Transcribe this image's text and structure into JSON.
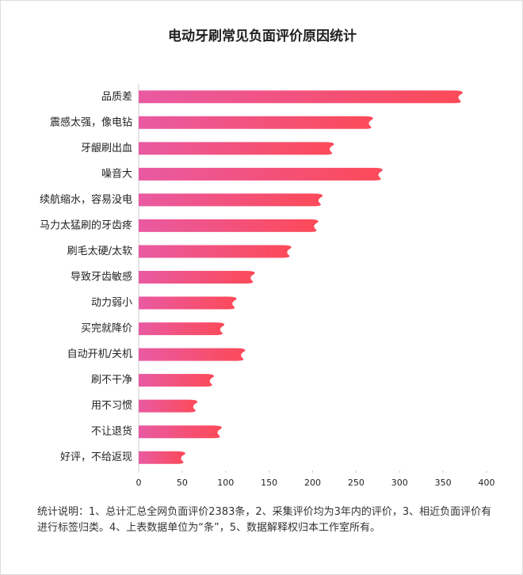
{
  "chart_data": {
    "type": "barh",
    "title": "电动牙刷常见负面评价原因统计",
    "categories": [
      "品质差",
      "震感太强，像电钻",
      "牙龈刷出血",
      "噪音大",
      "续航缩水，容易没电",
      "马力太猛刷的牙齿疼",
      "刷毛太硬/太软",
      "导致牙齿敏感",
      "动力弱小",
      "买完就降价",
      "自动开机/关机",
      "刷不干净",
      "用不习惯",
      "不让退货",
      "好评，不给返现"
    ],
    "values": [
      370,
      267,
      222,
      278,
      209,
      204,
      173,
      131,
      110,
      96,
      120,
      84,
      65,
      93,
      51
    ],
    "gradient": [
      "#e95aa2",
      "#fc4a58"
    ],
    "xlim": [
      0,
      400
    ],
    "xticks": [
      0,
      50,
      100,
      150,
      200,
      250,
      300,
      350,
      400
    ],
    "note": "统计说明：1、总计汇总全网负面评价2383条，2、采集评价均为3年内的评价，3、相近负面评价有进行标签归类。4、上表数据单位为“条”，5、数据解释权归本工作室所有。"
  }
}
